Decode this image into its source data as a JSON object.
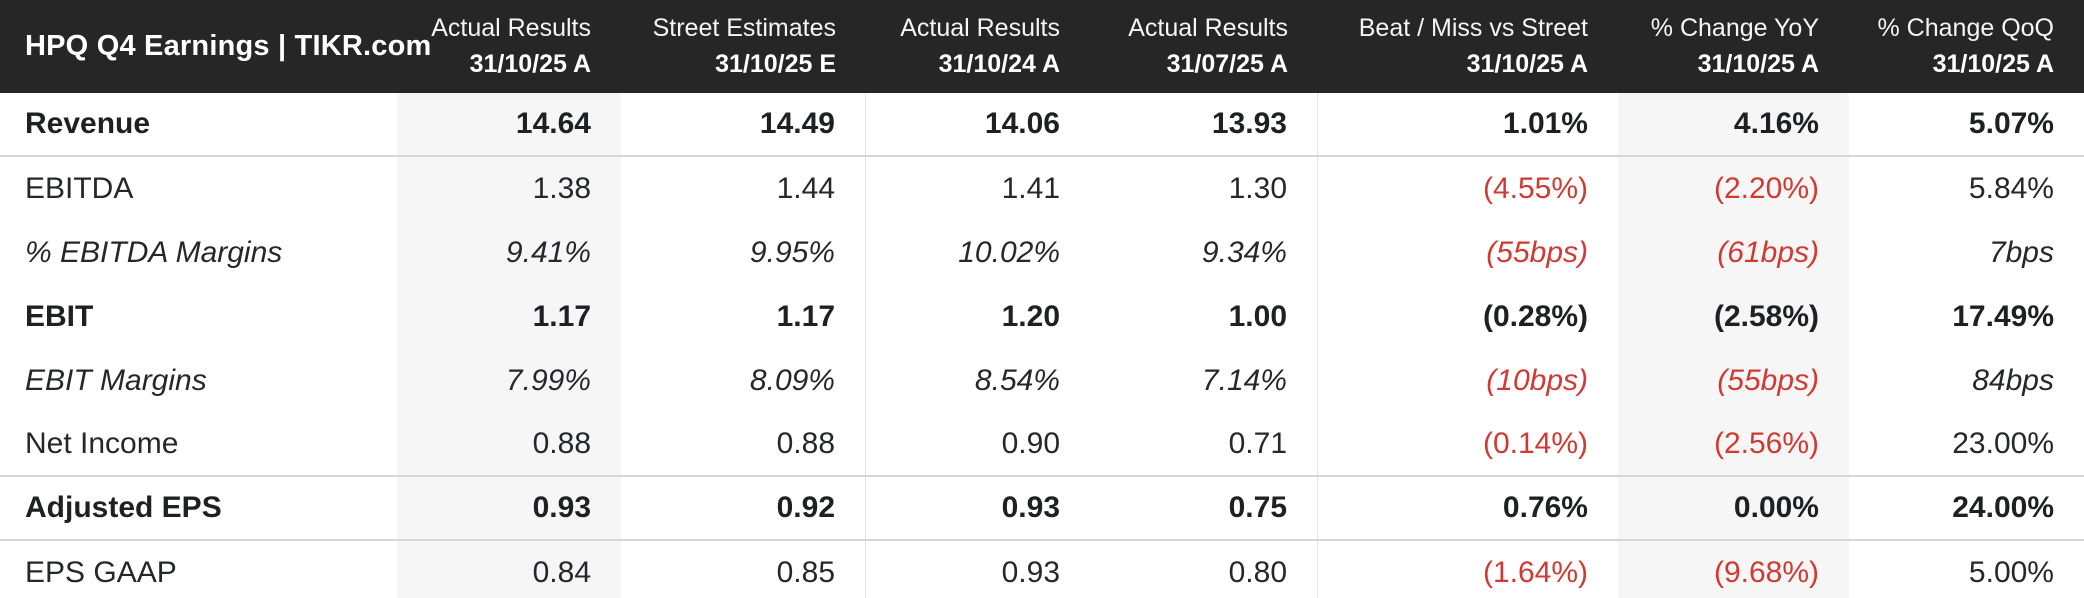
{
  "title": "HPQ Q4 Earnings | TIKR.com",
  "colors": {
    "header_background": "#262626",
    "header_text": "#ffffff",
    "body_text": "#25272b",
    "positive": "#37883c",
    "negative": "#d03a32",
    "shaded_column_background": "#f6f6f7",
    "section_divider": "#d6d6d8",
    "column_divider": "#e4e4e6"
  },
  "chart_data": {
    "type": "table",
    "title": "HPQ Q4 Earnings | TIKR.com",
    "columns": [
      {
        "label": "Actual Results",
        "date": "31/10/25 A",
        "shaded": true
      },
      {
        "label": "Street Estimates",
        "date": "31/10/25 E",
        "divider_after": true
      },
      {
        "label": "Actual Results",
        "date": "31/10/24 A"
      },
      {
        "label": "Actual Results",
        "date": "31/07/25 A",
        "divider_after": true
      },
      {
        "label": "Beat / Miss vs Street",
        "date": "31/10/25 A"
      },
      {
        "label": "% Change YoY",
        "date": "31/10/25 A",
        "shaded": true
      },
      {
        "label": "% Change QoQ",
        "date": "31/10/25 A"
      }
    ],
    "rows": [
      {
        "label": "Revenue",
        "style": "bold",
        "section_end": true,
        "values": [
          {
            "text": "14.64"
          },
          {
            "text": "14.49"
          },
          {
            "text": "14.06"
          },
          {
            "text": "13.93"
          },
          {
            "text": "1.01%",
            "color": "green"
          },
          {
            "text": "4.16%"
          },
          {
            "text": "5.07%"
          }
        ]
      },
      {
        "label": "EBITDA",
        "style": "regular",
        "section_end": false,
        "values": [
          {
            "text": "1.38"
          },
          {
            "text": "1.44"
          },
          {
            "text": "1.41"
          },
          {
            "text": "1.30"
          },
          {
            "text": "(4.55%)",
            "color": "red"
          },
          {
            "text": "(2.20%)",
            "color": "red"
          },
          {
            "text": "5.84%"
          }
        ]
      },
      {
        "label": "% EBITDA Margins",
        "style": "italic",
        "section_end": false,
        "values": [
          {
            "text": "9.41%"
          },
          {
            "text": "9.95%"
          },
          {
            "text": "10.02%"
          },
          {
            "text": "9.34%"
          },
          {
            "text": "(55bps)",
            "color": "red"
          },
          {
            "text": "(61bps)",
            "color": "red"
          },
          {
            "text": "7bps"
          }
        ]
      },
      {
        "label": "EBIT",
        "style": "bold",
        "section_end": false,
        "values": [
          {
            "text": "1.17"
          },
          {
            "text": "1.17"
          },
          {
            "text": "1.20"
          },
          {
            "text": "1.00"
          },
          {
            "text": "(0.28%)",
            "color": "red"
          },
          {
            "text": "(2.58%)",
            "color": "red"
          },
          {
            "text": "17.49%"
          }
        ]
      },
      {
        "label": "EBIT Margins",
        "style": "italic",
        "section_end": false,
        "values": [
          {
            "text": "7.99%"
          },
          {
            "text": "8.09%"
          },
          {
            "text": "8.54%"
          },
          {
            "text": "7.14%"
          },
          {
            "text": "(10bps)",
            "color": "red"
          },
          {
            "text": "(55bps)",
            "color": "red"
          },
          {
            "text": "84bps"
          }
        ]
      },
      {
        "label": "Net Income",
        "style": "regular",
        "section_end": true,
        "values": [
          {
            "text": "0.88"
          },
          {
            "text": "0.88"
          },
          {
            "text": "0.90"
          },
          {
            "text": "0.71"
          },
          {
            "text": "(0.14%)",
            "color": "red"
          },
          {
            "text": "(2.56%)",
            "color": "red"
          },
          {
            "text": "23.00%"
          }
        ]
      },
      {
        "label": "Adjusted EPS",
        "style": "bold",
        "section_end": true,
        "values": [
          {
            "text": "0.93"
          },
          {
            "text": "0.92"
          },
          {
            "text": "0.93"
          },
          {
            "text": "0.75"
          },
          {
            "text": "0.76%",
            "color": "green"
          },
          {
            "text": "0.00%"
          },
          {
            "text": "24.00%"
          }
        ]
      },
      {
        "label": "EPS GAAP",
        "style": "regular",
        "section_end": false,
        "values": [
          {
            "text": "0.84"
          },
          {
            "text": "0.85"
          },
          {
            "text": "0.93"
          },
          {
            "text": "0.80"
          },
          {
            "text": "(1.64%)",
            "color": "red"
          },
          {
            "text": "(9.68%)",
            "color": "red"
          },
          {
            "text": "5.00%"
          }
        ]
      }
    ]
  }
}
